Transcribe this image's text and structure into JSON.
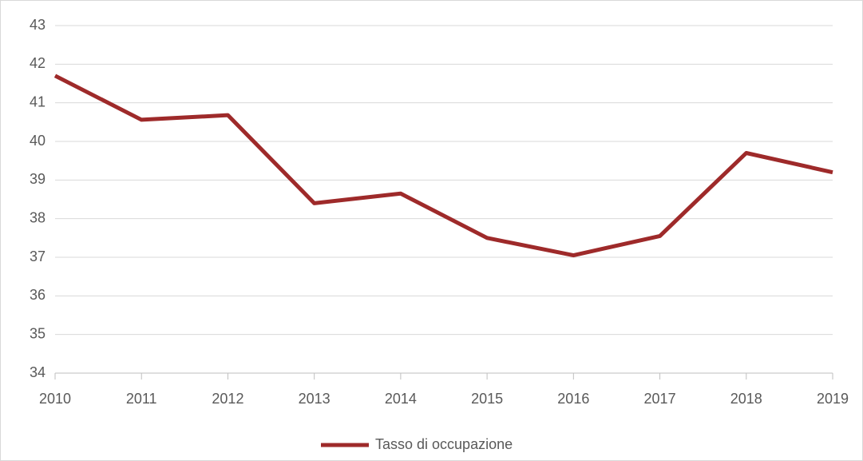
{
  "chart_data": {
    "type": "line",
    "x": [
      2010,
      2011,
      2012,
      2013,
      2014,
      2015,
      2016,
      2017,
      2018,
      2019
    ],
    "series": [
      {
        "name": "Tasso di occupazione",
        "color": "#9e2a2a",
        "values": [
          41.7,
          40.56,
          40.68,
          38.4,
          38.65,
          37.5,
          37.05,
          37.55,
          39.7,
          39.2
        ]
      }
    ],
    "xlim": [
      2010,
      2019
    ],
    "xticks": [
      2010,
      2011,
      2012,
      2013,
      2014,
      2015,
      2016,
      2017,
      2018,
      2019
    ],
    "ylim": [
      34,
      43
    ],
    "yticks": [
      34,
      35,
      36,
      37,
      38,
      39,
      40,
      41,
      42,
      43
    ],
    "grid": true,
    "legend": "bottom"
  }
}
